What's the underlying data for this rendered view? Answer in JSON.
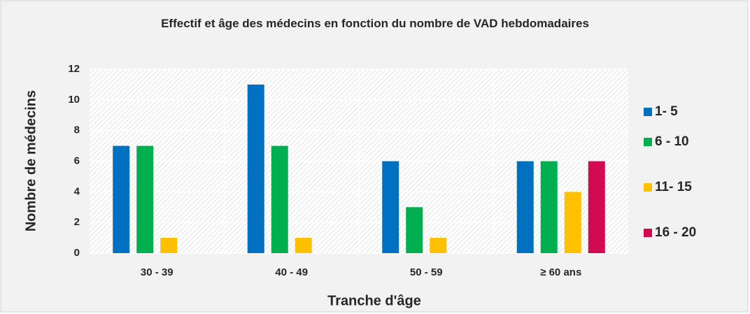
{
  "chart_data": {
    "type": "bar",
    "title": "Effectif et âge des médecins en fonction du nombre de VAD hebdomadaires",
    "x_label": "Tranche d'âge",
    "y_label": "Nombre de médecins",
    "categories": [
      "30 - 39",
      "40 -  49",
      "50 - 59",
      "≥ 60 ans"
    ],
    "series": [
      {
        "name": "1- 5",
        "color": "#0070c0",
        "values": [
          7,
          11,
          6,
          6
        ]
      },
      {
        "name": "6 - 10",
        "color": "#00b050",
        "values": [
          7,
          7,
          3,
          6
        ]
      },
      {
        "name": "11- 15",
        "color": "#ffc000",
        "values": [
          1,
          1,
          1,
          4
        ]
      },
      {
        "name": "16 - 20",
        "color": "#d20a4f",
        "values": [
          0,
          0,
          0,
          6
        ]
      }
    ],
    "ylim": [
      0,
      12
    ],
    "yticks": [
      0,
      2,
      4,
      6,
      8,
      10,
      12
    ],
    "grid": true,
    "legend": "right"
  }
}
